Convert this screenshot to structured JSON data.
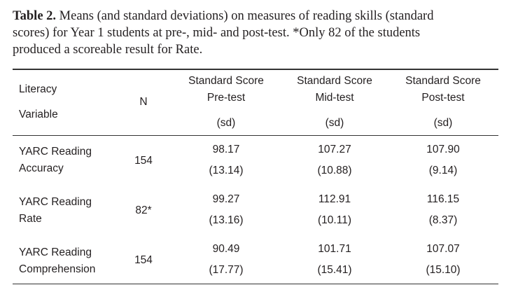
{
  "caption": {
    "label": "Table 2.",
    "line1": " Means (and standard deviations) on measures of reading skills (standard",
    "line2": "scores) for Year 1 students at pre-, mid- and post-test. *Only 82 of the students",
    "line3": "produced a scoreable result for Rate."
  },
  "header": {
    "variable_l1": "Literacy",
    "variable_l2": "Variable",
    "n": "N",
    "pre_l1": "Standard Score",
    "pre_l2": "Pre-test",
    "pre_l3": "(sd)",
    "mid_l1": "Standard Score",
    "mid_l2": "Mid-test",
    "mid_l3": "(sd)",
    "post_l1": "Standard Score",
    "post_l2": "Post-test",
    "post_l3": "(sd)"
  },
  "rows": [
    {
      "var_l1": "YARC Reading",
      "var_l2": "Accuracy",
      "n": "154",
      "pre_mean": "98.17",
      "pre_sd": "(13.14)",
      "mid_mean": "107.27",
      "mid_sd": "(10.88)",
      "post_mean": "107.90",
      "post_sd": "(9.14)"
    },
    {
      "var_l1": "YARC Reading",
      "var_l2": "Rate",
      "n": "82*",
      "pre_mean": "99.27",
      "pre_sd": "(13.16)",
      "mid_mean": "112.91",
      "mid_sd": "(10.11)",
      "post_mean": "116.15",
      "post_sd": "(8.37)"
    },
    {
      "var_l1": "YARC Reading",
      "var_l2": "Comprehension",
      "n": "154",
      "pre_mean": "90.49",
      "pre_sd": "(17.77)",
      "mid_mean": "101.71",
      "mid_sd": "(15.41)",
      "post_mean": "107.07",
      "post_sd": "(15.10)"
    }
  ]
}
